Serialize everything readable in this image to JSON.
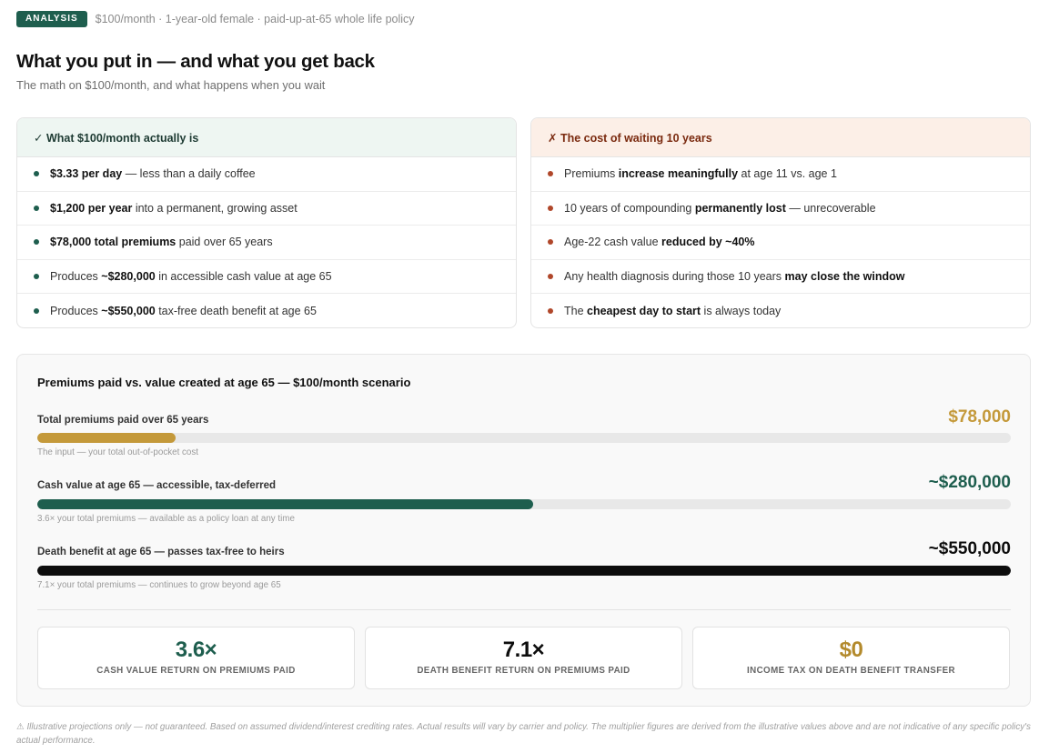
{
  "header": {
    "tag": "ANALYSIS",
    "context": "$100/month · 1-year-old female · paid-up-at-65 whole life policy",
    "title": "What you put in — and what you get back",
    "subtitle": "The math on $100/month, and what happens when you wait"
  },
  "left_card": {
    "title": "✓ What $100/month actually is",
    "rows": [
      {
        "bold": "$3.33 per day",
        "rest": " — less than a daily coffee"
      },
      {
        "bold": "$1,200 per year",
        "rest": " into a permanent, growing asset"
      },
      {
        "bold": "$78,000 total premiums",
        "rest": " paid over 65 years"
      },
      {
        "pre": "Produces ",
        "bold": "~$280,000",
        "rest": " in accessible cash value at age 65"
      },
      {
        "pre": "Produces ",
        "bold": "~$550,000",
        "rest": " tax-free death benefit at age 65"
      }
    ]
  },
  "right_card": {
    "title": "✗ The cost of waiting 10 years",
    "rows": [
      {
        "pre": "Premiums ",
        "bold": "increase meaningfully",
        "rest": " at age 11 vs. age 1"
      },
      {
        "pre": "10 years of compounding ",
        "bold": "permanently lost",
        "rest": " — unrecoverable"
      },
      {
        "pre": "Age-22 cash value ",
        "bold": "reduced by ~40%",
        "rest": ""
      },
      {
        "pre": "Any health diagnosis during those 10 years ",
        "bold": "may close the window",
        "rest": ""
      },
      {
        "pre": "The ",
        "bold": "cheapest day to start",
        "rest": " is always today"
      }
    ]
  },
  "comparison": {
    "title": "Premiums paid vs. value created at age 65 — $100/month scenario",
    "bars": [
      {
        "label": "Total premiums paid over 65 years",
        "value": "$78,000",
        "fraction": 0.1418,
        "color": "#c4993a",
        "note": "The input — your total out-of-pocket cost"
      },
      {
        "label": "Cash value at age 65 — accessible, tax-deferred",
        "value": "~$280,000",
        "fraction": 0.5091,
        "color": "#1e5e4e",
        "note": "3.6× your total premiums — available as a policy loan at any time"
      },
      {
        "label": "Death benefit at age 65 — passes tax-free to heirs",
        "value": "~$550,000",
        "fraction": 1.0,
        "color": "#0d0d0d",
        "note": "7.1× your total premiums — continues to grow beyond age 65"
      }
    ],
    "stats": [
      {
        "value": "3.6×",
        "label": "CASH VALUE RETURN ON PREMIUMS PAID",
        "color": "#1e5e4e"
      },
      {
        "value": "7.1×",
        "label": "DEATH BENEFIT RETURN ON PREMIUMS PAID",
        "color": "#0d0d0d"
      },
      {
        "value": "$0",
        "label": "INCOME TAX ON DEATH BENEFIT TRANSFER",
        "color": "#b38a2c"
      }
    ]
  },
  "footnote": "⚠ Illustrative projections only — not guaranteed. Based on assumed dividend/interest crediting rates. Actual results will vary by carrier and policy. The multiplier figures are derived from the illustrative values above and are not indicative of any specific policy's actual performance."
}
